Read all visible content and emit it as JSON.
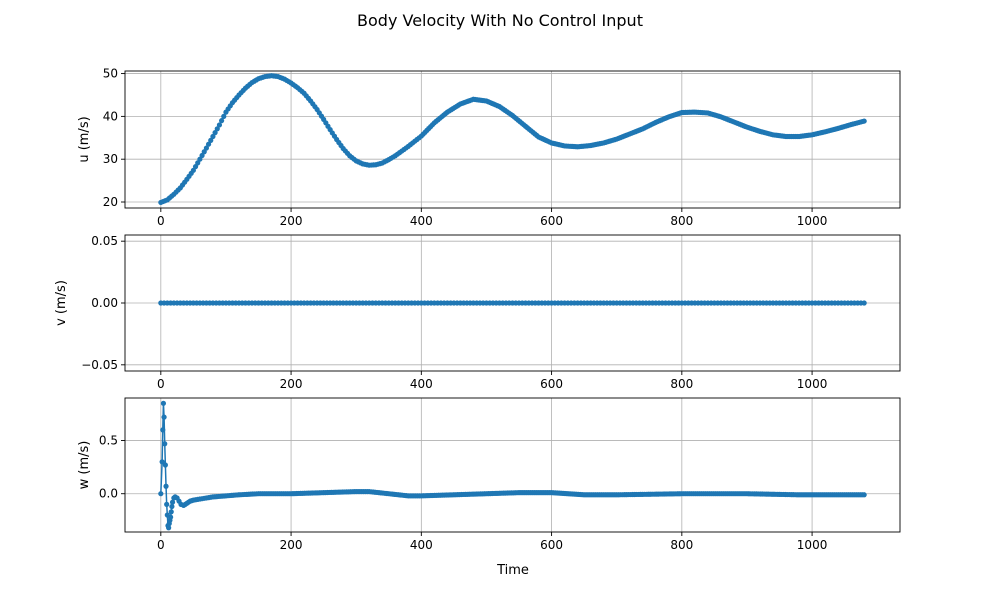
{
  "figure": {
    "title": "Body Velocity With No Control Input",
    "xlabel": "Time"
  },
  "style": {
    "series_color": "#1f77b4",
    "grid_color": "#b0b0b0",
    "axis_color": "#000000",
    "background": "#ffffff"
  },
  "chart_data": [
    {
      "type": "line",
      "marker": "dot",
      "ylabel": "u (m/s)",
      "xlim": [
        -55,
        1135
      ],
      "ylim": [
        18.6,
        50.6
      ],
      "xticks": [
        0,
        200,
        400,
        600,
        800,
        1000
      ],
      "yticks": [
        20,
        30,
        40,
        50
      ],
      "ytick_labels": [
        "20",
        "30",
        "40",
        "50"
      ],
      "grid": true,
      "series": [
        {
          "x": [
            0,
            10,
            20,
            30,
            40,
            50,
            60,
            70,
            80,
            90,
            100,
            110,
            120,
            130,
            140,
            150,
            160,
            170,
            180,
            190,
            200,
            210,
            220,
            230,
            240,
            250,
            260,
            270,
            280,
            290,
            300,
            310,
            320,
            330,
            340,
            350,
            360,
            370,
            380,
            390,
            400,
            420,
            440,
            460,
            480,
            500,
            520,
            540,
            560,
            580,
            600,
            620,
            640,
            660,
            680,
            700,
            720,
            740,
            760,
            780,
            800,
            820,
            840,
            860,
            880,
            900,
            920,
            940,
            960,
            980,
            1000,
            1020,
            1040,
            1060,
            1080
          ],
          "y": [
            19.9,
            20.5,
            21.8,
            23.3,
            25.3,
            27.4,
            30.0,
            32.6,
            35.3,
            38.0,
            41.0,
            43.2,
            45.0,
            46.6,
            47.9,
            48.8,
            49.3,
            49.5,
            49.3,
            48.7,
            47.8,
            46.7,
            45.4,
            43.6,
            41.6,
            39.3,
            36.9,
            34.6,
            32.5,
            30.8,
            29.6,
            28.9,
            28.6,
            28.7,
            29.1,
            29.9,
            30.8,
            31.9,
            33.0,
            34.2,
            35.4,
            38.5,
            41.0,
            42.9,
            44.0,
            43.6,
            42.3,
            40.2,
            37.7,
            35.2,
            33.8,
            33.1,
            32.9,
            33.2,
            33.8,
            34.7,
            35.9,
            37.1,
            38.6,
            39.9,
            40.9,
            41.0,
            40.8,
            39.9,
            38.7,
            37.5,
            36.5,
            35.7,
            35.3,
            35.3,
            35.7,
            36.4,
            37.2,
            38.1,
            38.9
          ]
        }
      ]
    },
    {
      "type": "line",
      "marker": "dot",
      "ylabel": "v (m/s)",
      "xlim": [
        -55,
        1135
      ],
      "ylim": [
        -0.055,
        0.055
      ],
      "xticks": [
        0,
        200,
        400,
        600,
        800,
        1000
      ],
      "yticks": [
        -0.05,
        0,
        0.05
      ],
      "ytick_labels": [
        "−0.05",
        "0.00",
        "0.05"
      ],
      "grid": true,
      "series": [
        {
          "x": [
            0,
            1080
          ],
          "y": [
            0.0,
            0.0
          ]
        }
      ]
    },
    {
      "type": "line",
      "marker": "dot",
      "ylabel": "w (m/s)",
      "xlim": [
        -55,
        1135
      ],
      "ylim": [
        -0.36,
        0.9
      ],
      "xticks": [
        0,
        200,
        400,
        600,
        800,
        1000
      ],
      "xtick_labels": [
        "0",
        "200",
        "400",
        "600",
        "800",
        "1000"
      ],
      "yticks": [
        0,
        0.5
      ],
      "ytick_labels": [
        "0.0",
        "0.5"
      ],
      "grid": true,
      "series": [
        {
          "x": [
            0,
            2,
            3,
            4,
            5,
            6,
            7,
            8,
            9,
            10,
            11,
            12,
            13,
            14,
            15,
            16,
            17,
            18,
            20,
            22,
            25,
            28,
            31,
            35,
            40,
            45,
            50,
            60,
            70,
            80,
            100,
            120,
            150,
            200,
            250,
            300,
            320,
            350,
            380,
            400,
            450,
            500,
            550,
            600,
            650,
            700,
            800,
            900,
            980,
            1050,
            1080
          ],
          "y": [
            0.0,
            0.3,
            0.6,
            0.85,
            0.72,
            0.47,
            0.27,
            0.07,
            -0.1,
            -0.2,
            -0.3,
            -0.32,
            -0.28,
            -0.25,
            -0.22,
            -0.17,
            -0.12,
            -0.08,
            -0.04,
            -0.03,
            -0.04,
            -0.07,
            -0.1,
            -0.11,
            -0.09,
            -0.07,
            -0.06,
            -0.05,
            -0.04,
            -0.03,
            -0.02,
            -0.01,
            0.0,
            0.0,
            0.01,
            0.02,
            0.02,
            0.0,
            -0.02,
            -0.02,
            -0.01,
            0.0,
            0.01,
            0.01,
            -0.01,
            -0.01,
            0.0,
            0.0,
            -0.01,
            -0.01,
            -0.01
          ]
        }
      ]
    }
  ]
}
